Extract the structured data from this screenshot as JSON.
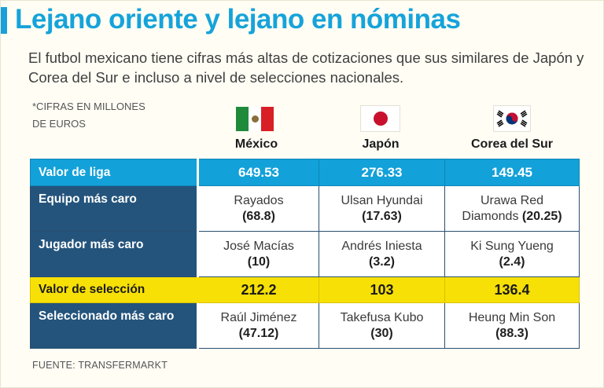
{
  "title": "Lejano oriente y lejano en nóminas",
  "subtitle": "El futbol mexicano tiene cifras más altas de cotizaciones que sus similares de Japón y Corea del Sur e incluso a nivel de selecciones nacionales.",
  "note_line1": "*CIFRAS EN MILLONES",
  "note_line2": "DE EUROS",
  "source": "FUENTE: TRANSFERMARKT",
  "colors": {
    "title": "#16a3da",
    "label_bg": "#24547c",
    "highlight_blue": "#13a1d9",
    "highlight_yellow": "#f7e006"
  },
  "chart_data": {
    "type": "table",
    "title": "Lejano oriente y lejano en nóminas",
    "units": "*CIFRAS EN MILLONES DE EUROS",
    "columns": [
      "México",
      "Japón",
      "Corea del Sur"
    ],
    "flags": [
      "mexico-flag-icon",
      "japan-flag-icon",
      "south-korea-flag-icon"
    ],
    "rows": [
      {
        "label": "Valor de liga",
        "cells": [
          {
            "text": "649.53"
          },
          {
            "text": "276.33"
          },
          {
            "text": "149.45"
          }
        ]
      },
      {
        "label": "Equipo más caro",
        "cells": [
          {
            "text": "Rayados",
            "value": "(68.8)"
          },
          {
            "text": "Ulsan Hyundai",
            "value": "(17.63)"
          },
          {
            "text": "Urawa Red",
            "text2": "Diamonds",
            "value": "(20.25)"
          }
        ]
      },
      {
        "label": "Jugador más caro",
        "cells": [
          {
            "text": "José Macías",
            "value": "(10)"
          },
          {
            "text": "Andrés Iniesta",
            "value": "(3.2)"
          },
          {
            "text": "Ki Sung Yueng",
            "value": "(2.4)"
          }
        ]
      },
      {
        "label": "Valor de selección",
        "cells": [
          {
            "text": "212.2"
          },
          {
            "text": "103"
          },
          {
            "text": "136.4"
          }
        ]
      },
      {
        "label": "Seleccionado más caro",
        "cells": [
          {
            "text": "Raúl Jiménez",
            "value": "(47.12)"
          },
          {
            "text": "Takefusa Kubo",
            "value": "(30)"
          },
          {
            "text": "Heung Min Son",
            "value": "(88.3)"
          }
        ]
      }
    ]
  }
}
